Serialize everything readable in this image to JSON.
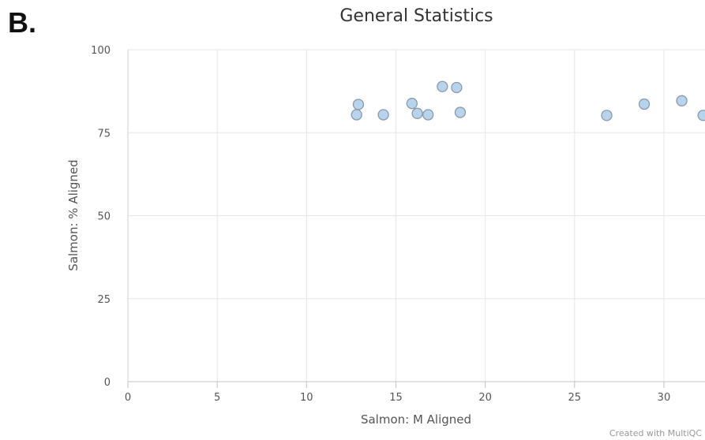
{
  "figure": {
    "panel_letter": "B.",
    "credit": "Created with MultiQC"
  },
  "chart_data": {
    "type": "scatter",
    "title": "General Statistics",
    "xlabel": "Salmon: M Aligned",
    "ylabel": "Salmon: % Aligned",
    "xlim": [
      0,
      32.3
    ],
    "ylim": [
      0,
      100
    ],
    "xticks": [
      0,
      5,
      10,
      15,
      20,
      25,
      30
    ],
    "yticks": [
      0,
      25,
      50,
      75,
      100
    ],
    "grid": true,
    "marker_color": "#b7d4ec",
    "marker_edge": "#8a9aa9",
    "points": [
      {
        "x": 12.8,
        "y": 80.4
      },
      {
        "x": 12.9,
        "y": 83.5
      },
      {
        "x": 14.3,
        "y": 80.4
      },
      {
        "x": 15.9,
        "y": 83.8
      },
      {
        "x": 16.2,
        "y": 80.8
      },
      {
        "x": 16.8,
        "y": 80.4
      },
      {
        "x": 17.6,
        "y": 88.9
      },
      {
        "x": 18.4,
        "y": 88.6
      },
      {
        "x": 18.6,
        "y": 81.1
      },
      {
        "x": 26.8,
        "y": 80.2
      },
      {
        "x": 28.9,
        "y": 83.6
      },
      {
        "x": 31.0,
        "y": 84.6
      },
      {
        "x": 32.2,
        "y": 80.2
      }
    ]
  }
}
